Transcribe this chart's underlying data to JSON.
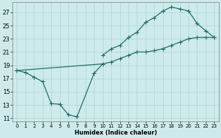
{
  "xlabel": "Humidex (Indice chaleur)",
  "bg_color": "#ceeaea",
  "grid_color": "#aad4d4",
  "line_color": "#1a6b60",
  "marker": "+",
  "xlim": [
    -0.5,
    23.5
  ],
  "ylim": [
    10.5,
    28.5
  ],
  "xticks": [
    0,
    1,
    2,
    3,
    4,
    5,
    6,
    7,
    8,
    9,
    10,
    11,
    12,
    13,
    14,
    15,
    16,
    17,
    18,
    19,
    20,
    21,
    22,
    23
  ],
  "yticks": [
    11,
    13,
    15,
    17,
    19,
    21,
    23,
    25,
    27
  ],
  "curve_dip_x": [
    0,
    1,
    2,
    3,
    4,
    5,
    6,
    7,
    9
  ],
  "curve_dip_y": [
    18.2,
    17.9,
    17.2,
    16.5,
    13.2,
    13.1,
    11.5,
    11.2,
    17.8
  ],
  "curve_diag_x": [
    0,
    10,
    11,
    12,
    13,
    14,
    15,
    16,
    17,
    18,
    19,
    20,
    21,
    22,
    23
  ],
  "curve_diag_y": [
    18.2,
    19.2,
    19.5,
    20.0,
    20.5,
    21.0,
    21.0,
    21.2,
    21.5,
    22.0,
    22.5,
    23.0,
    23.2,
    23.2,
    23.2
  ],
  "curve_upper_x": [
    10,
    11,
    12,
    13,
    14,
    15,
    16,
    17,
    18,
    19,
    20,
    21,
    22,
    23
  ],
  "curve_upper_y": [
    20.5,
    21.5,
    22.0,
    23.2,
    24.0,
    25.5,
    26.2,
    27.2,
    27.8,
    27.5,
    27.2,
    25.3,
    24.2,
    23.2
  ]
}
